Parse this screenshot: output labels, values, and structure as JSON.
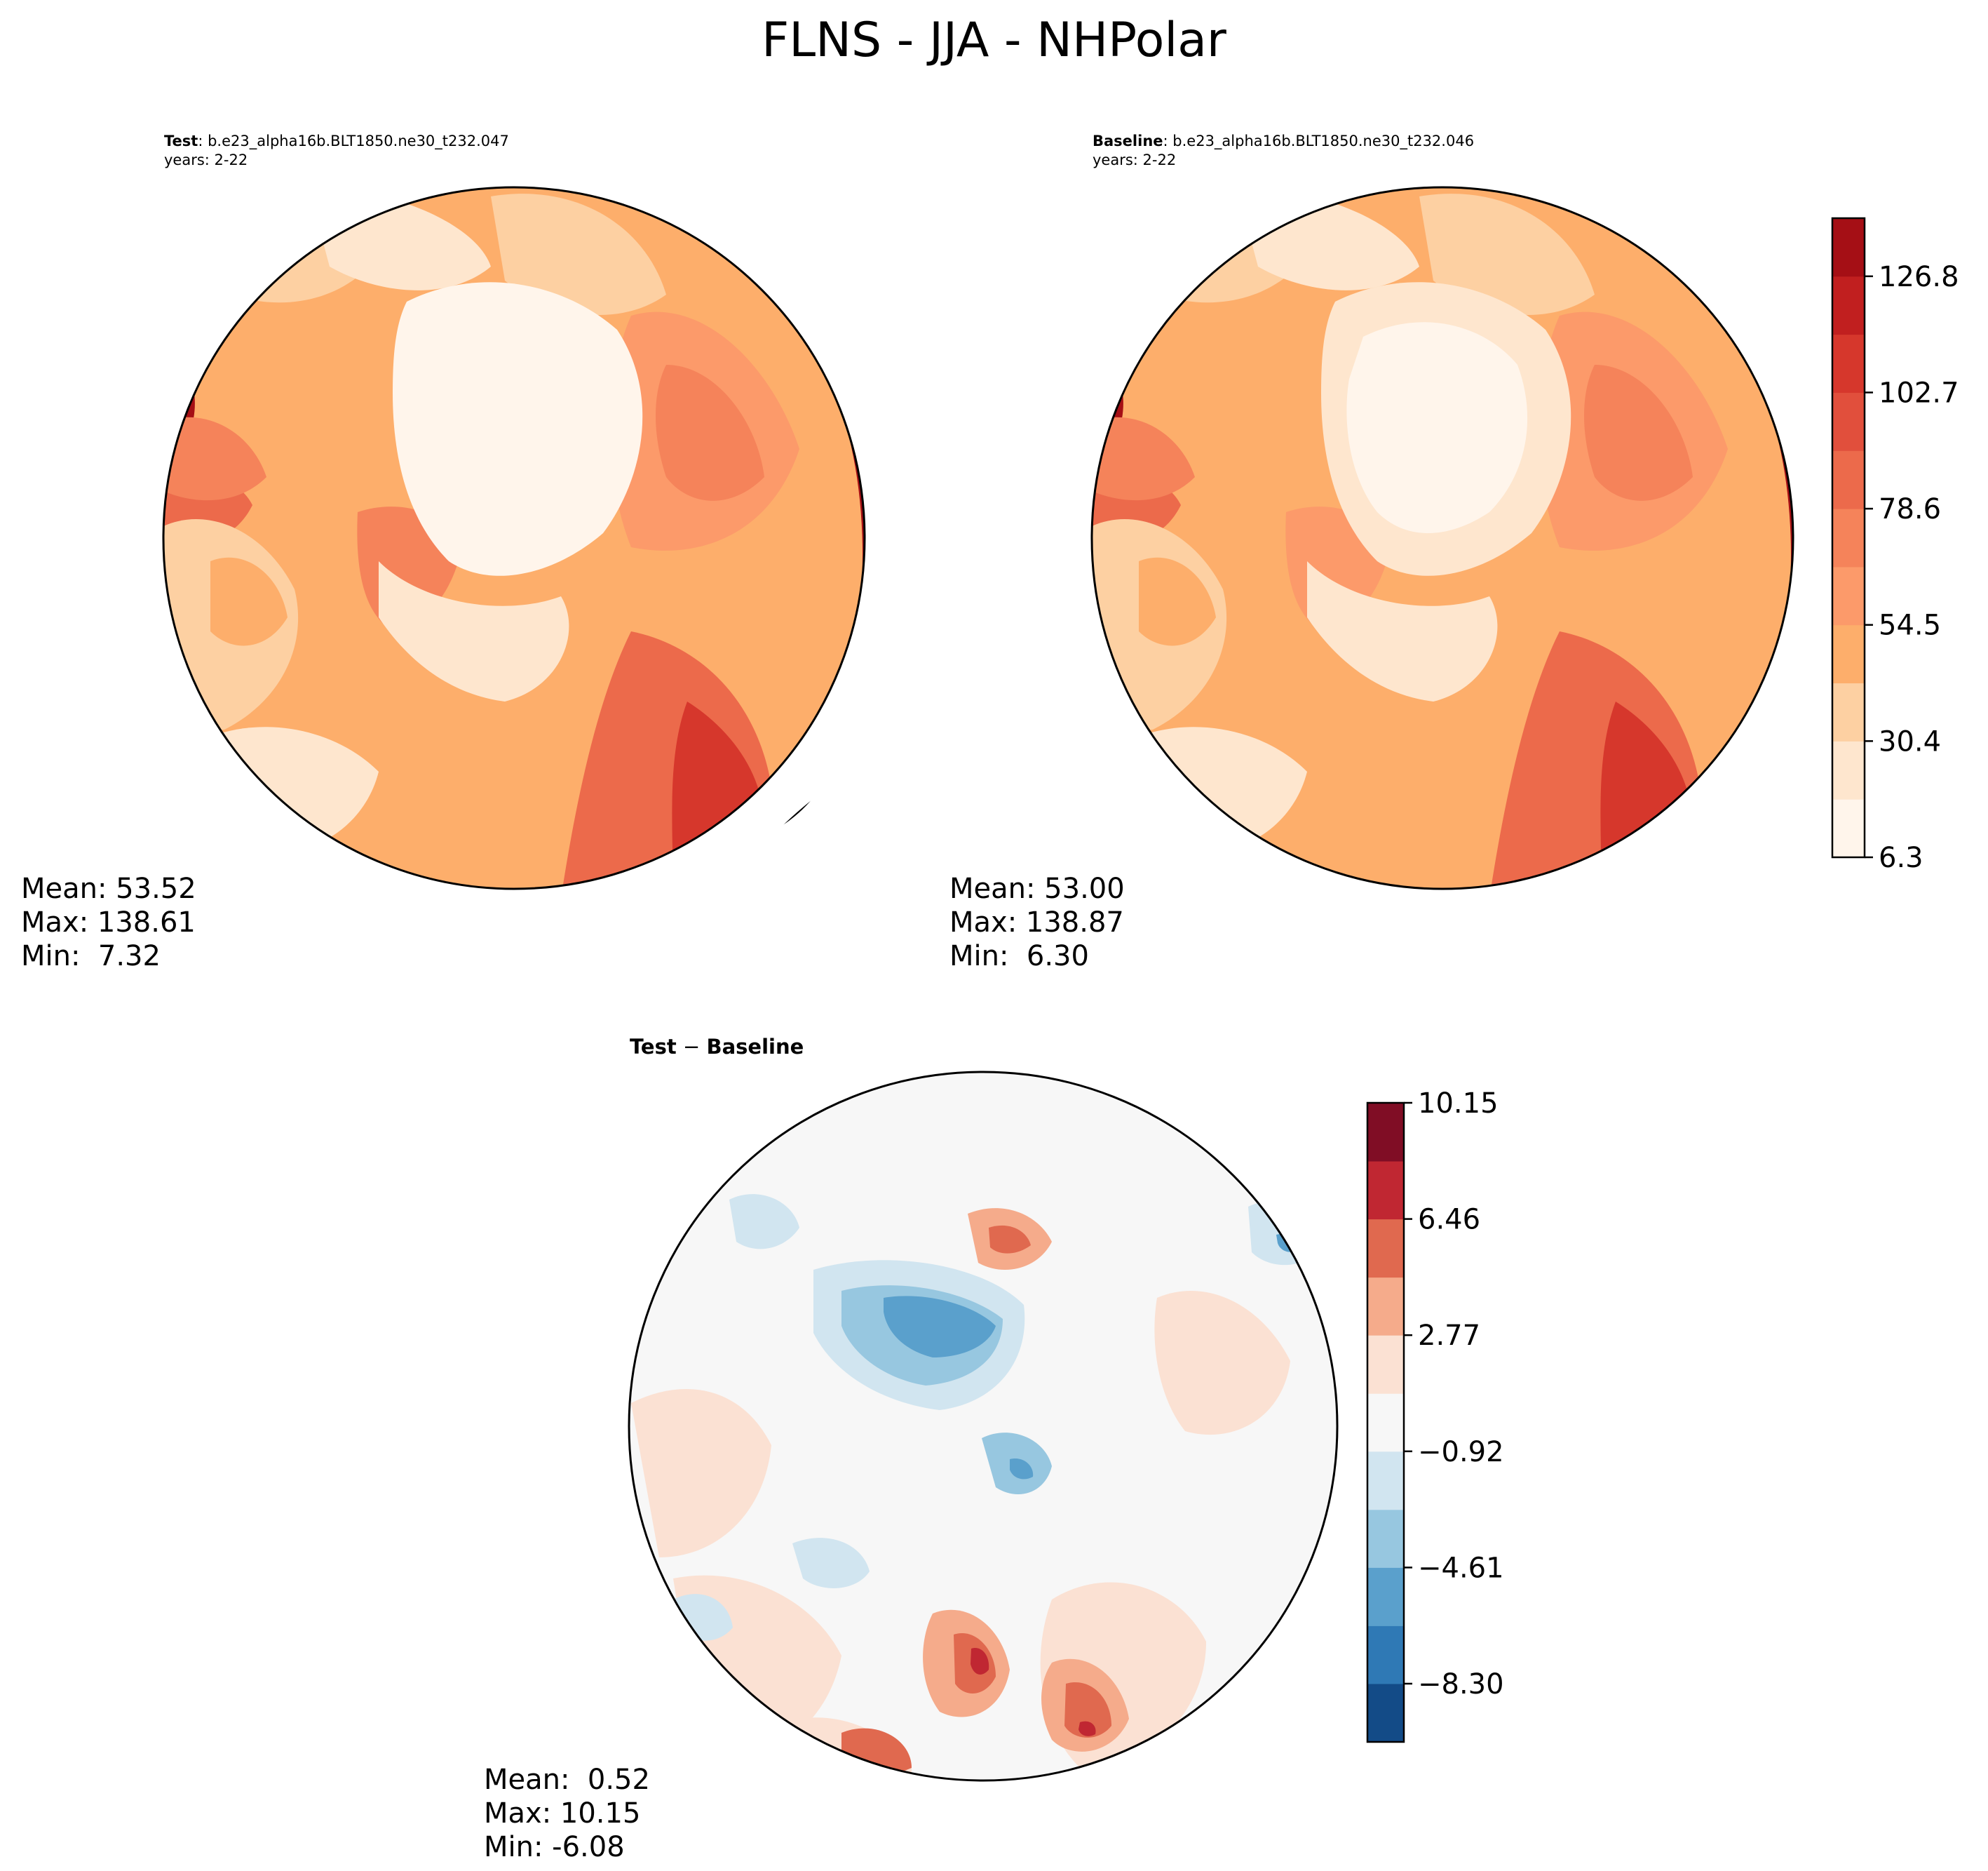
{
  "figure": {
    "title": "FLNS - JJA - NHPolar"
  },
  "panels": {
    "test": {
      "label": "Test",
      "case": "b.e23_alpha16b.BLT1850.ne30_t232.047",
      "years": "years: 2-22",
      "mean": "Mean: 53.52",
      "max": "Max: 138.61",
      "min": "Min:  7.32"
    },
    "baseline": {
      "label": "Baseline",
      "case": "b.e23_alpha16b.BLT1850.ne30_t232.046",
      "years": "years: 2-22",
      "mean": "Mean: 53.00",
      "max": "Max: 138.87",
      "min": "Min:  6.30"
    },
    "diff": {
      "title_a": "Test",
      "title_op": " − ",
      "title_b": "Baseline",
      "mean": "Mean:  0.52",
      "max": "Max: 10.15",
      "min": "Min: -6.08"
    }
  },
  "chart_data": [
    {
      "type": "heatmap",
      "projection": "north-polar-stereographic",
      "panel": "test",
      "title": "Test: b.e23_alpha16b.BLT1850.ne30_t232.047",
      "colormap": "OrRd",
      "levels": [
        6.3,
        18.35,
        30.4,
        42.45,
        54.5,
        66.55,
        78.6,
        90.65,
        102.7,
        114.75,
        126.8,
        138.85
      ],
      "level_colors": [
        "#fff5eb",
        "#fee6ce",
        "#fdd0a2",
        "#fdae6b",
        "#fc9a6a",
        "#f5835a",
        "#ec6a4b",
        "#e14f3c",
        "#d6372c",
        "#c11f1f",
        "#a50f15",
        "#85060f"
      ],
      "stats": {
        "mean": 53.52,
        "max": 138.61,
        "min": 7.32
      }
    },
    {
      "type": "heatmap",
      "projection": "north-polar-stereographic",
      "panel": "baseline",
      "title": "Baseline: b.e23_alpha16b.BLT1850.ne30_t232.046",
      "colormap": "OrRd",
      "levels": [
        6.3,
        18.35,
        30.4,
        42.45,
        54.5,
        66.55,
        78.6,
        90.65,
        102.7,
        114.75,
        126.8,
        138.85
      ],
      "colorbar_ticks": [
        "6.3",
        "30.4",
        "54.5",
        "78.6",
        "102.7",
        "126.8"
      ],
      "tick_values": [
        6.3,
        30.4,
        54.5,
        78.6,
        102.7,
        126.8
      ],
      "level_colors": [
        "#fff5eb",
        "#fee6ce",
        "#fdd0a2",
        "#fdae6b",
        "#fc9a6a",
        "#f5835a",
        "#ec6a4b",
        "#e14f3c",
        "#d6372c",
        "#c11f1f",
        "#a50f15",
        "#85060f"
      ],
      "stats": {
        "mean": 53.0,
        "max": 138.87,
        "min": 6.3
      }
    },
    {
      "type": "heatmap",
      "projection": "north-polar-stereographic",
      "panel": "diff",
      "title": "Test − Baseline",
      "colormap": "RdBu_r",
      "levels": [
        -10.15,
        -8.3,
        -6.46,
        -4.61,
        -2.77,
        -0.92,
        0.92,
        2.77,
        4.61,
        6.46,
        8.3,
        10.15
      ],
      "colorbar_ticks": [
        "10.15",
        "6.46",
        "2.77",
        "−0.92",
        "−4.61",
        "−8.30"
      ],
      "tick_values": [
        10.15,
        6.46,
        2.77,
        -0.92,
        -4.61,
        -8.3
      ],
      "level_colors": [
        "#134b87",
        "#2f79b5",
        "#5aa0cc",
        "#97c7e0",
        "#d1e5f0",
        "#f7f7f7",
        "#fbe1d3",
        "#f5ab8b",
        "#e0694f",
        "#c02732",
        "#800d25"
      ],
      "stats": {
        "mean": 0.52,
        "max": 10.15,
        "min": -6.08
      }
    }
  ]
}
